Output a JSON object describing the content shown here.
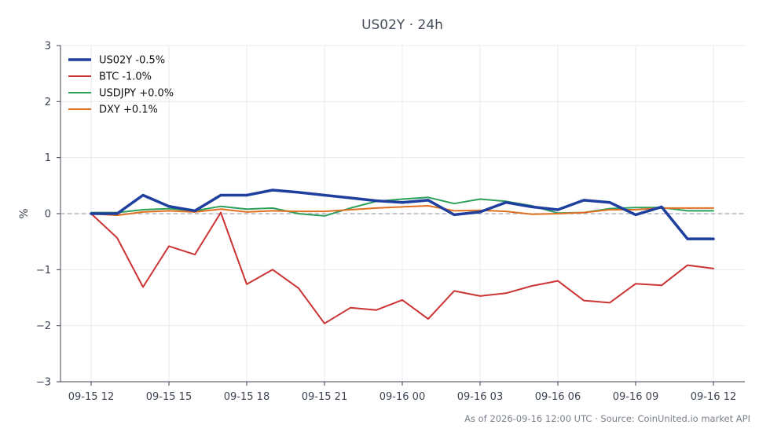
{
  "chart_data": {
    "type": "line",
    "title": "US02Y · 24h",
    "xlabel": "",
    "ylabel": "%",
    "ylim": [
      -3,
      3
    ],
    "yticks": [
      -3,
      -2,
      -1,
      0,
      1,
      2,
      3
    ],
    "ytick_labels": [
      "−3",
      "−2",
      "−1",
      "0",
      "1",
      "2",
      "3"
    ],
    "x": [
      "09-15 12:00",
      "09-15 13:00",
      "09-15 14:00",
      "09-15 15:00",
      "09-15 16:00",
      "09-15 17:00",
      "09-15 18:00",
      "09-15 19:00",
      "09-15 20:00",
      "09-15 21:00",
      "09-15 22:00",
      "09-15 23:00",
      "09-16 00:00",
      "09-16 01:00",
      "09-16 02:00",
      "09-16 03:00",
      "09-16 04:00",
      "09-16 05:00",
      "09-16 06:00",
      "09-16 07:00",
      "09-16 08:00",
      "09-16 09:00",
      "09-16 10:00",
      "09-16 11:00",
      "09-16 12:00"
    ],
    "xticks": [
      "09-15 12",
      "09-15 15",
      "09-15 18",
      "09-15 21",
      "09-16 00",
      "09-16 03",
      "09-16 06",
      "09-16 09",
      "09-16 12"
    ],
    "xtick_index": [
      0,
      3,
      6,
      9,
      12,
      15,
      18,
      21,
      24
    ],
    "grid": true,
    "legend": "top-left",
    "zero_line": true,
    "series": [
      {
        "name": "US02Y -0.5%",
        "color": "#1f3f9e",
        "width": 3.5,
        "values": [
          0.0,
          0.0,
          0.33,
          0.13,
          0.05,
          0.33,
          0.33,
          0.42,
          0.38,
          0.33,
          0.28,
          0.23,
          0.2,
          0.24,
          -0.02,
          0.03,
          0.2,
          0.12,
          0.07,
          0.24,
          0.2,
          -0.02,
          0.12,
          -0.45,
          -0.45
        ]
      },
      {
        "name": "BTC -1.0%",
        "color": "#cc3333",
        "width": 2,
        "values": [
          0.0,
          -0.43,
          -1.31,
          -0.58,
          -0.73,
          0.02,
          -1.26,
          -1.0,
          -1.33,
          -1.96,
          -1.68,
          -1.72,
          -1.54,
          -1.88,
          -1.38,
          -1.47,
          -1.42,
          -1.29,
          -1.2,
          -1.55,
          -1.59,
          -1.25,
          -1.28,
          -0.92,
          -0.98
        ]
      },
      {
        "name": "USDJPY +0.0%",
        "color": "#2ca05a",
        "width": 2,
        "values": [
          0.02,
          0.02,
          0.07,
          0.09,
          0.05,
          0.13,
          0.08,
          0.1,
          0.0,
          -0.04,
          0.1,
          0.22,
          0.26,
          0.29,
          0.18,
          0.26,
          0.22,
          0.14,
          0.01,
          0.02,
          0.09,
          0.11,
          0.11,
          0.05,
          0.05
        ]
      },
      {
        "name": "DXY +0.1%",
        "color": "#e07020",
        "width": 2,
        "values": [
          0.0,
          -0.03,
          0.03,
          0.05,
          0.03,
          0.08,
          0.03,
          0.05,
          0.04,
          0.04,
          0.07,
          0.1,
          0.12,
          0.14,
          0.05,
          0.06,
          0.04,
          -0.01,
          0.0,
          0.02,
          0.07,
          0.07,
          0.1,
          0.1,
          0.1
        ]
      }
    ]
  },
  "footer": "As of 2026-09-16 12:00 UTC · Source: CoinUnited.io market API"
}
